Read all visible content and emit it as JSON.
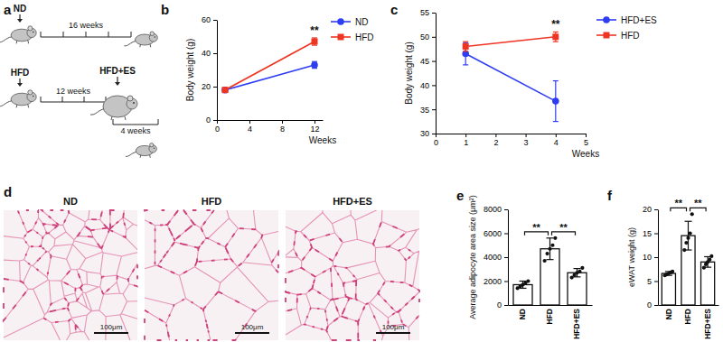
{
  "diagram": {
    "panel": "a",
    "rows": [
      {
        "label": "ND",
        "duration": "16 weeks"
      },
      {
        "label": "HFD",
        "duration": "12 weeks",
        "switch_label": "HFD+ES",
        "switch_duration": "4 weeks"
      }
    ]
  },
  "histology": {
    "panel": "d",
    "images": [
      {
        "label": "ND",
        "scale_bar": "100μm"
      },
      {
        "label": "HFD",
        "scale_bar": "100μm"
      },
      {
        "label": "HFD+ES",
        "scale_bar": "100μm"
      }
    ]
  },
  "chart_data": [
    {
      "panel": "b",
      "type": "line",
      "x_label": "Weeks",
      "y_label": "Body weight (g)",
      "x": [
        1,
        12
      ],
      "xlim": [
        0,
        13
      ],
      "xticks": [
        0,
        4,
        8,
        12
      ],
      "ylim": [
        0,
        60
      ],
      "yticks": [
        0,
        20,
        40,
        60
      ],
      "legend": "right",
      "series": [
        {
          "name": "ND",
          "color": "#2f3df2",
          "marker": "circle",
          "values": [
            18,
            33
          ],
          "errors": [
            0.5,
            2
          ]
        },
        {
          "name": "HFD",
          "color": "#ee3524",
          "marker": "square",
          "values": [
            18,
            47
          ],
          "errors": [
            0.6,
            2.2
          ]
        }
      ],
      "annotations": [
        {
          "text": "**",
          "x": 12
        }
      ]
    },
    {
      "panel": "c",
      "type": "line",
      "x_label": "Weeks",
      "y_label": "Body weight (g)",
      "x": [
        1,
        4
      ],
      "xlim": [
        0,
        5
      ],
      "xticks": [
        0,
        1,
        2,
        3,
        4,
        5
      ],
      "ylim": [
        30,
        55
      ],
      "yticks": [
        30,
        35,
        40,
        45,
        50,
        55
      ],
      "legend": "right",
      "series": [
        {
          "name": "HFD+ES",
          "color": "#2f3df2",
          "marker": "circle",
          "values": [
            46.5,
            36.7
          ],
          "errors": [
            2.3,
            4.2
          ]
        },
        {
          "name": "HFD",
          "color": "#ee3524",
          "marker": "square",
          "values": [
            48,
            50
          ],
          "errors": [
            1,
            1
          ]
        }
      ],
      "annotations": [
        {
          "text": "**",
          "x": 4
        }
      ]
    },
    {
      "panel": "e",
      "type": "bar",
      "y_label": "Average adipocyte area size (μm²)",
      "categories": [
        "ND",
        "HFD",
        "HFD+ES"
      ],
      "values": [
        1700,
        4700,
        2700
      ],
      "errors": [
        300,
        900,
        350
      ],
      "points": [
        [
          1400,
          1550,
          1700,
          1850,
          2000
        ],
        [
          3700,
          4300,
          4700,
          5000,
          5600
        ],
        [
          2300,
          2500,
          2700,
          2800,
          3100
        ]
      ],
      "ylim": [
        0,
        8000
      ],
      "yticks": [
        0,
        2000,
        4000,
        6000,
        8000
      ],
      "color": "#ffffff",
      "annotations": [
        {
          "text": "**",
          "between": [
            "ND",
            "HFD"
          ]
        },
        {
          "text": "**",
          "between": [
            "HFD",
            "HFD+ES"
          ]
        }
      ]
    },
    {
      "panel": "f",
      "type": "bar",
      "y_label": "eWAT weight (g)",
      "categories": [
        "ND",
        "HFD",
        "HFD+ES"
      ],
      "values": [
        6.6,
        14.5,
        9
      ],
      "errors": [
        0.4,
        3,
        1.1
      ],
      "points": [
        [
          6.2,
          6.4,
          6.6,
          6.8,
          7
        ],
        [
          11.5,
          13,
          14,
          15,
          19
        ],
        [
          7.8,
          8.5,
          9,
          9.5,
          10.2
        ]
      ],
      "ylim": [
        0,
        20
      ],
      "yticks": [
        0,
        5,
        10,
        15,
        20
      ],
      "color": "#ffffff",
      "annotations": [
        {
          "text": "**",
          "between": [
            "ND",
            "HFD"
          ]
        },
        {
          "text": "**",
          "between": [
            "HFD",
            "HFD+ES"
          ]
        }
      ]
    }
  ]
}
